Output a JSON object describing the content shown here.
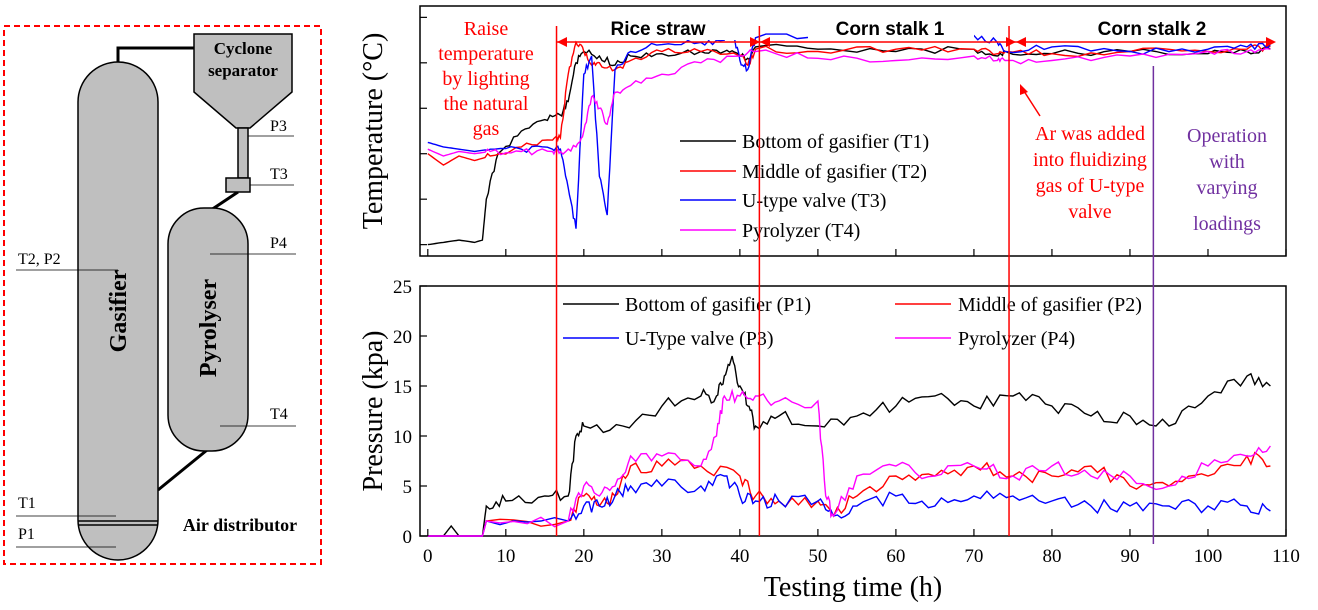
{
  "diagram": {
    "labels": {
      "cyclone_line1": "Cyclone",
      "cyclone_line2": "separator",
      "p3": "P3",
      "t3": "T3",
      "p4": "P4",
      "t4": "T4",
      "t2p2": "T2, P2",
      "t1": "T1",
      "p1": "P1",
      "gasifier": "Gasifier",
      "pyrolyser": "Pyrolyser",
      "air_distributor": "Air distributor"
    },
    "colors": {
      "vessel_fill": "#bfbfbf",
      "border": "#ff0000"
    }
  },
  "annotations": {
    "raise": [
      "Raise",
      "temperature",
      "by lighting",
      "the natural",
      "gas"
    ],
    "sections": {
      "rice": "Rice straw",
      "corn1": "Corn stalk 1",
      "corn2": "Corn stalk 2"
    },
    "ar": [
      "Ar was added",
      "into fluidizing",
      "gas of U-type",
      "valve"
    ],
    "operation": [
      "Operation",
      "with",
      "varying",
      "loadings"
    ]
  },
  "chart_data": [
    {
      "type": "line",
      "ylabel": "Temperature (°C)",
      "xlabel": "",
      "xlim": [
        -1,
        110
      ],
      "y_ticks_printed": false,
      "series": [
        {
          "name": "Bottom of gasifier (T1)",
          "color": "#000000",
          "x": [
            0,
            2,
            4,
            6,
            7,
            7.5,
            9,
            12,
            15,
            17,
            18,
            19,
            20,
            22,
            24,
            26,
            30,
            35,
            38,
            40,
            41,
            42,
            50,
            60,
            70,
            73,
            74,
            80,
            90,
            100,
            105,
            108
          ],
          "y": [
            5,
            6,
            7,
            6,
            7,
            25,
            45,
            55,
            60,
            62,
            68,
            85,
            90,
            88,
            84,
            88,
            89,
            90,
            90,
            88,
            87,
            92,
            91,
            90,
            91,
            88,
            90,
            89,
            90,
            89,
            90,
            91
          ]
        },
        {
          "name": "Middle of gasifier (T2)",
          "color": "#ff0000",
          "x": [
            0,
            2,
            4,
            6,
            8,
            12,
            16,
            17,
            18,
            19,
            20,
            21,
            22,
            24,
            26,
            30,
            35,
            40,
            41,
            42,
            50,
            60,
            70,
            73,
            74,
            80,
            90,
            100,
            105,
            108
          ],
          "y": [
            45,
            40,
            44,
            42,
            44,
            48,
            51,
            52,
            80,
            94,
            90,
            84,
            85,
            82,
            86,
            90,
            90,
            88,
            84,
            91,
            90,
            91,
            91,
            89,
            90,
            89,
            90,
            90,
            91,
            92
          ]
        },
        {
          "name": "U-type valve (T3)",
          "color": "#0000ff",
          "x": [
            0,
            2,
            4,
            6,
            8,
            12,
            16,
            17,
            18,
            19,
            20,
            21,
            22,
            23,
            24,
            26,
            30,
            35,
            38,
            39,
            40,
            41,
            42,
            50,
            60,
            70,
            73,
            74,
            80,
            90,
            100,
            105,
            108
          ],
          "y": [
            50,
            48,
            47,
            46,
            47,
            47,
            47,
            47,
            30,
            12,
            80,
            88,
            35,
            18,
            82,
            90,
            93,
            94,
            95,
            100,
            86,
            82,
            96,
            97,
            97,
            97,
            94,
            90,
            92,
            90,
            91,
            92,
            93
          ]
        },
        {
          "name": "Pyrolyzer (T4)",
          "color": "#ff00ff",
          "x": [
            0,
            2,
            4,
            6,
            8,
            12,
            16,
            17,
            19,
            20,
            21,
            22,
            23,
            24,
            26,
            30,
            35,
            40,
            42,
            50,
            60,
            70,
            73,
            74,
            80,
            90,
            100,
            105,
            108
          ],
          "y": [
            47,
            44,
            46,
            45,
            46,
            46,
            46,
            46,
            48,
            55,
            70,
            65,
            58,
            72,
            75,
            80,
            85,
            88,
            90,
            87,
            86,
            88,
            86,
            86,
            86,
            88,
            90,
            90,
            91
          ]
        }
      ]
    },
    {
      "type": "line",
      "xlabel": "Testing time (h)",
      "ylabel": "Pressure (kpa)",
      "xlim": [
        -1,
        110
      ],
      "ylim": [
        0,
        25
      ],
      "x_ticks": [
        0,
        10,
        20,
        30,
        40,
        50,
        60,
        70,
        80,
        90,
        100,
        110
      ],
      "y_ticks": [
        0,
        5,
        10,
        15,
        20,
        25
      ],
      "series": [
        {
          "name": "Bottom of gasifier (P1)",
          "color": "#000000",
          "x": [
            0,
            2,
            3,
            4,
            5,
            6,
            7,
            7.5,
            10,
            15,
            18,
            19,
            20,
            25,
            30,
            35,
            37,
            38,
            39,
            40,
            41,
            42,
            45,
            50,
            55,
            60,
            65,
            70,
            75,
            80,
            85,
            90,
            95,
            100,
            105,
            108
          ],
          "y": [
            0,
            0,
            1,
            0,
            0,
            0,
            0,
            3,
            3.5,
            4,
            4,
            10,
            11,
            11,
            13,
            14,
            14,
            16,
            18,
            15,
            13,
            11,
            12,
            11,
            12,
            13,
            14,
            13,
            14,
            13,
            12,
            12,
            11,
            14,
            16,
            15
          ]
        },
        {
          "name": "Middle of gasifier (P2)",
          "color": "#ff0000",
          "x": [
            0,
            7,
            7.5,
            18,
            20,
            22,
            24,
            26,
            30,
            35,
            40,
            42,
            45,
            50,
            52,
            55,
            60,
            65,
            70,
            75,
            80,
            85,
            90,
            95,
            100,
            105,
            108
          ],
          "y": [
            0,
            0,
            1.5,
            1.5,
            4,
            3,
            4,
            7,
            7,
            7,
            6,
            4,
            3.5,
            3.5,
            2,
            4,
            6,
            6,
            7,
            6,
            6,
            7,
            5,
            5,
            6,
            8,
            7
          ]
        },
        {
          "name": "U-Type valve (P3)",
          "color": "#0000ff",
          "x": [
            0,
            7,
            7.5,
            18,
            20,
            22,
            24,
            26,
            30,
            35,
            38,
            40,
            42,
            45,
            50,
            52,
            55,
            60,
            65,
            70,
            75,
            80,
            85,
            90,
            95,
            100,
            105,
            108
          ],
          "y": [
            0,
            0,
            1.5,
            1.5,
            3,
            3,
            4,
            5,
            5,
            5,
            6,
            4,
            3.5,
            3.5,
            3.5,
            2,
            3,
            4,
            3,
            4,
            4,
            3.5,
            3,
            3,
            3,
            3,
            3,
            2.5
          ]
        },
        {
          "name": "Pyrolyzer (P4)",
          "color": "#ff00ff",
          "x": [
            0,
            7,
            7.5,
            18,
            20,
            22,
            24,
            26,
            30,
            35,
            37,
            38,
            40,
            42,
            45,
            50,
            51,
            52,
            55,
            60,
            65,
            70,
            75,
            80,
            85,
            90,
            95,
            100,
            105,
            108
          ],
          "y": [
            0,
            0,
            1.5,
            1.5,
            5,
            4,
            5,
            8,
            8,
            7,
            10,
            14,
            14,
            14,
            13.5,
            13.5,
            4,
            2,
            6,
            7,
            6,
            7,
            6,
            7,
            6,
            6,
            5,
            7,
            8,
            9
          ]
        }
      ]
    }
  ],
  "markers": {
    "red_lines_h": [
      16.5,
      42.5,
      74.5
    ],
    "purple_line_h": 93,
    "colors": {
      "red": "#ff0000",
      "purple": "#7030a0"
    }
  }
}
